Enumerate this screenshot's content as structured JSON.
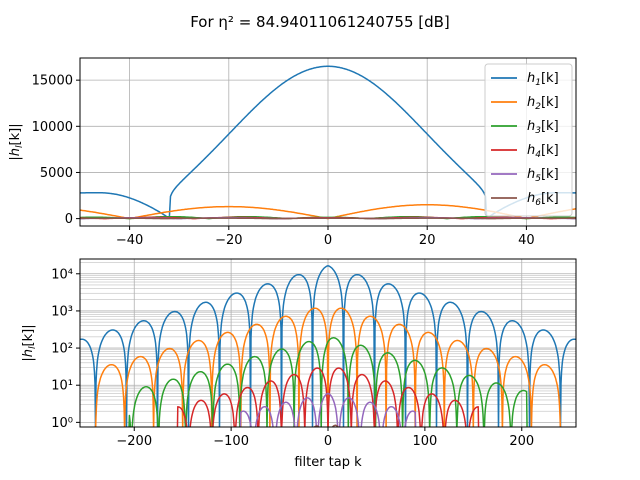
{
  "suptitle": "For η² = 84.94011061240755 [dB]",
  "chart_data": [
    {
      "type": "line",
      "panel": "top",
      "title": "",
      "xlabel": "",
      "ylabel": "|h_l[k]|",
      "xlim": [
        -50,
        50
      ],
      "ylim": [
        -800,
        17400
      ],
      "yscale": "linear",
      "grid": true,
      "x_ticks": [
        -40,
        -20,
        0,
        20,
        40
      ],
      "y_ticks": [
        0,
        5000,
        10000,
        15000
      ],
      "legend_position": "upper-right",
      "series": [
        {
          "name": "h1[k]",
          "color": "#1f77b4",
          "model": {
            "amp": 16500,
            "sigma": 20,
            "zero": 32,
            "side_amp": 2800,
            "side_center": 46
          }
        },
        {
          "name": "h2[k]",
          "color": "#ff7f0e",
          "model": {
            "peaks": [
              [
                -20,
                1300
              ],
              [
                20,
                1500
              ]
            ],
            "zeros": [
              -40,
              0,
              40
            ]
          }
        },
        {
          "name": "h3[k]",
          "color": "#2ca02c",
          "model": {
            "level": 220
          }
        },
        {
          "name": "h4[k]",
          "color": "#d62728",
          "model": {
            "level": 140
          }
        },
        {
          "name": "h5[k]",
          "color": "#9467bd",
          "model": {
            "level": 90
          }
        },
        {
          "name": "h6[k]",
          "color": "#8c564b",
          "model": {
            "level": 60
          }
        }
      ]
    },
    {
      "type": "line",
      "panel": "bottom",
      "title": "",
      "xlabel": "filter tap k",
      "ylabel": "|h_l[k]|",
      "xlim": [
        -256,
        256
      ],
      "ylim": [
        0.75,
        25000
      ],
      "yscale": "log",
      "grid": true,
      "x_ticks": [
        -200,
        -100,
        0,
        100,
        200
      ],
      "y_ticks": [
        1,
        10,
        100,
        1000,
        10000
      ],
      "y_tick_labels": [
        "10⁰",
        "10¹",
        "10²",
        "10³",
        "10⁴"
      ],
      "series": [
        {
          "name": "h1[k]",
          "color": "#1f77b4",
          "lobe_width": 32,
          "offset": 0,
          "peak": 16500,
          "decay": 56,
          "cutoff": 260
        },
        {
          "name": "h2[k]",
          "color": "#ff7f0e",
          "lobe_width": 30,
          "offset": 15,
          "peak": 1500,
          "decay": 60,
          "cutoff": 240
        },
        {
          "name": "h3[k]",
          "color": "#2ca02c",
          "lobe_width": 28,
          "offset": 7,
          "peak": 210,
          "decay": 60,
          "cutoff": 205
        },
        {
          "name": "h4[k]",
          "color": "#d62728",
          "lobe_width": 24,
          "offset": 12,
          "peak": 35,
          "decay": 60,
          "cutoff": 155
        },
        {
          "name": "h5[k]",
          "color": "#9467bd",
          "lobe_width": 22,
          "offset": 0,
          "peak": 6,
          "decay": 80,
          "cutoff": 90
        },
        {
          "name": "h6[k]",
          "color": "#8c564b",
          "lobe_width": 20,
          "offset": 8,
          "peak": 0.9,
          "decay": 100,
          "cutoff": 40
        }
      ]
    }
  ]
}
